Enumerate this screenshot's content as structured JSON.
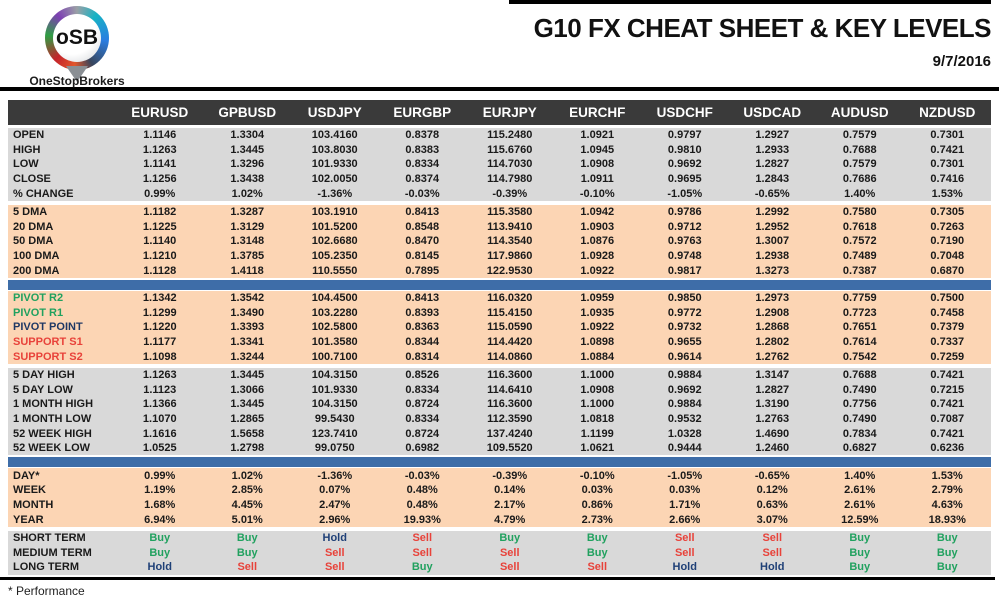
{
  "header": {
    "logo_text": "oSB",
    "logo_caption": "OneStopBrokers",
    "title": "G10 FX CHEAT SHEET & KEY LEVELS",
    "date": "9/7/2016"
  },
  "footer": {
    "note": "* Performance"
  },
  "colors": {
    "header_bg": "#3a3a3a",
    "section_gray": "#d9d9d9",
    "section_peach": "#fcd5b4",
    "divider_blue": "#3e6da8",
    "buy_green": "#21a15f",
    "sell_red": "#e8423a",
    "hold_navy": "#1f4077",
    "pivot_point_navy": "#1f3864"
  },
  "table": {
    "columns": [
      "EURUSD",
      "GPBUSD",
      "USDJPY",
      "EURGBP",
      "EURJPY",
      "EURCHF",
      "USDCHF",
      "USDCAD",
      "AUDUSD",
      "NZDUSD"
    ],
    "sections": [
      {
        "id": "ohlc",
        "bg": "gray",
        "divider_after": "gap",
        "rows": [
          {
            "label": "OPEN",
            "values": [
              "1.1146",
              "1.3304",
              "103.4160",
              "0.8378",
              "115.2480",
              "1.0921",
              "0.9797",
              "1.2927",
              "0.7579",
              "0.7301"
            ]
          },
          {
            "label": "HIGH",
            "values": [
              "1.1263",
              "1.3445",
              "103.8030",
              "0.8383",
              "115.6760",
              "1.0945",
              "0.9810",
              "1.2933",
              "0.7688",
              "0.7421"
            ]
          },
          {
            "label": "LOW",
            "values": [
              "1.1141",
              "1.3296",
              "101.9330",
              "0.8334",
              "114.7030",
              "1.0908",
              "0.9692",
              "1.2827",
              "0.7579",
              "0.7301"
            ]
          },
          {
            "label": "CLOSE",
            "values": [
              "1.1256",
              "1.3438",
              "102.0050",
              "0.8374",
              "114.7980",
              "1.0911",
              "0.9695",
              "1.2843",
              "0.7686",
              "0.7416"
            ]
          },
          {
            "label": "% CHANGE",
            "values": [
              "0.99%",
              "1.02%",
              "-1.36%",
              "-0.03%",
              "-0.39%",
              "-0.10%",
              "-1.05%",
              "-0.65%",
              "1.40%",
              "1.53%"
            ]
          }
        ]
      },
      {
        "id": "dma",
        "bg": "peach",
        "divider_after": "bar",
        "rows": [
          {
            "label": "5 DMA",
            "values": [
              "1.1182",
              "1.3287",
              "103.1910",
              "0.8413",
              "115.3580",
              "1.0942",
              "0.9786",
              "1.2992",
              "0.7580",
              "0.7305"
            ]
          },
          {
            "label": "20 DMA",
            "values": [
              "1.1225",
              "1.3129",
              "101.5200",
              "0.8548",
              "113.9410",
              "1.0903",
              "0.9712",
              "1.2952",
              "0.7618",
              "0.7263"
            ]
          },
          {
            "label": "50 DMA",
            "values": [
              "1.1140",
              "1.3148",
              "102.6680",
              "0.8470",
              "114.3540",
              "1.0876",
              "0.9763",
              "1.3007",
              "0.7572",
              "0.7190"
            ]
          },
          {
            "label": "100 DMA",
            "values": [
              "1.1210",
              "1.3785",
              "105.2350",
              "0.8145",
              "117.9860",
              "1.0928",
              "0.9748",
              "1.2938",
              "0.7489",
              "0.7048"
            ]
          },
          {
            "label": "200 DMA",
            "values": [
              "1.1128",
              "1.4118",
              "110.5550",
              "0.7895",
              "122.9530",
              "1.0922",
              "0.9817",
              "1.3273",
              "0.7387",
              "0.6870"
            ]
          }
        ]
      },
      {
        "id": "pivots",
        "bg": "peach",
        "divider_after": "gap",
        "rows": [
          {
            "label": "PIVOT R2",
            "label_color": "buy_green",
            "values": [
              "1.1342",
              "1.3542",
              "104.4500",
              "0.8413",
              "116.0320",
              "1.0959",
              "0.9850",
              "1.2973",
              "0.7759",
              "0.7500"
            ]
          },
          {
            "label": "PIVOT R1",
            "label_color": "buy_green",
            "values": [
              "1.1299",
              "1.3490",
              "103.2280",
              "0.8393",
              "115.4150",
              "1.0935",
              "0.9772",
              "1.2908",
              "0.7723",
              "0.7458"
            ]
          },
          {
            "label": "PIVOT POINT",
            "label_color": "pivot_point_navy",
            "values": [
              "1.1220",
              "1.3393",
              "102.5800",
              "0.8363",
              "115.0590",
              "1.0922",
              "0.9732",
              "1.2868",
              "0.7651",
              "0.7379"
            ]
          },
          {
            "label": "SUPPORT S1",
            "label_color": "sell_red",
            "values": [
              "1.1177",
              "1.3341",
              "101.3580",
              "0.8344",
              "114.4420",
              "1.0898",
              "0.9655",
              "1.2802",
              "0.7614",
              "0.7337"
            ]
          },
          {
            "label": "SUPPORT S2",
            "label_color": "sell_red",
            "values": [
              "1.1098",
              "1.3244",
              "100.7100",
              "0.8314",
              "114.0860",
              "1.0884",
              "0.9614",
              "1.2762",
              "0.7542",
              "0.7259"
            ]
          }
        ]
      },
      {
        "id": "ranges",
        "bg": "gray",
        "divider_after": "bar",
        "rows": [
          {
            "label": "5 DAY HIGH",
            "values": [
              "1.1263",
              "1.3445",
              "104.3150",
              "0.8526",
              "116.3600",
              "1.1000",
              "0.9884",
              "1.3147",
              "0.7688",
              "0.7421"
            ]
          },
          {
            "label": "5 DAY LOW",
            "values": [
              "1.1123",
              "1.3066",
              "101.9330",
              "0.8334",
              "114.6410",
              "1.0908",
              "0.9692",
              "1.2827",
              "0.7490",
              "0.7215"
            ]
          },
          {
            "label": "1 MONTH HIGH",
            "values": [
              "1.1366",
              "1.3445",
              "104.3150",
              "0.8724",
              "116.3600",
              "1.1000",
              "0.9884",
              "1.3190",
              "0.7756",
              "0.7421"
            ]
          },
          {
            "label": "1 MONTH LOW",
            "values": [
              "1.1070",
              "1.2865",
              "99.5430",
              "0.8334",
              "112.3590",
              "1.0818",
              "0.9532",
              "1.2763",
              "0.7490",
              "0.7087"
            ]
          },
          {
            "label": "52 WEEK HIGH",
            "values": [
              "1.1616",
              "1.5658",
              "123.7410",
              "0.8724",
              "137.4240",
              "1.1199",
              "1.0328",
              "1.4690",
              "0.7834",
              "0.7421"
            ]
          },
          {
            "label": "52 WEEK LOW",
            "values": [
              "1.0525",
              "1.2798",
              "99.0750",
              "0.6982",
              "109.5520",
              "1.0621",
              "0.9444",
              "1.2460",
              "0.6827",
              "0.6236"
            ]
          }
        ]
      },
      {
        "id": "performance",
        "bg": "peach",
        "divider_after": "gap",
        "rows": [
          {
            "label": "DAY*",
            "values": [
              "0.99%",
              "1.02%",
              "-1.36%",
              "-0.03%",
              "-0.39%",
              "-0.10%",
              "-1.05%",
              "-0.65%",
              "1.40%",
              "1.53%"
            ]
          },
          {
            "label": "WEEK",
            "values": [
              "1.19%",
              "2.85%",
              "0.07%",
              "0.48%",
              "0.14%",
              "0.03%",
              "0.03%",
              "0.12%",
              "2.61%",
              "2.79%"
            ]
          },
          {
            "label": "MONTH",
            "values": [
              "1.68%",
              "4.45%",
              "2.47%",
              "0.48%",
              "2.17%",
              "0.86%",
              "1.71%",
              "0.63%",
              "2.61%",
              "4.63%"
            ]
          },
          {
            "label": "YEAR",
            "values": [
              "6.94%",
              "5.01%",
              "2.96%",
              "19.93%",
              "4.79%",
              "2.73%",
              "2.66%",
              "3.07%",
              "12.59%",
              "18.93%"
            ]
          }
        ]
      },
      {
        "id": "signals",
        "bg": "gray",
        "signal": true,
        "divider_after": "none",
        "rows": [
          {
            "label": "SHORT TERM",
            "values": [
              "Buy",
              "Buy",
              "Hold",
              "Sell",
              "Buy",
              "Buy",
              "Sell",
              "Sell",
              "Buy",
              "Buy"
            ]
          },
          {
            "label": "MEDIUM TERM",
            "values": [
              "Buy",
              "Buy",
              "Sell",
              "Sell",
              "Sell",
              "Buy",
              "Sell",
              "Sell",
              "Buy",
              "Buy"
            ]
          },
          {
            "label": "LONG TERM",
            "values": [
              "Hold",
              "Sell",
              "Sell",
              "Buy",
              "Sell",
              "Sell",
              "Hold",
              "Hold",
              "Buy",
              "Buy"
            ]
          }
        ]
      }
    ]
  }
}
